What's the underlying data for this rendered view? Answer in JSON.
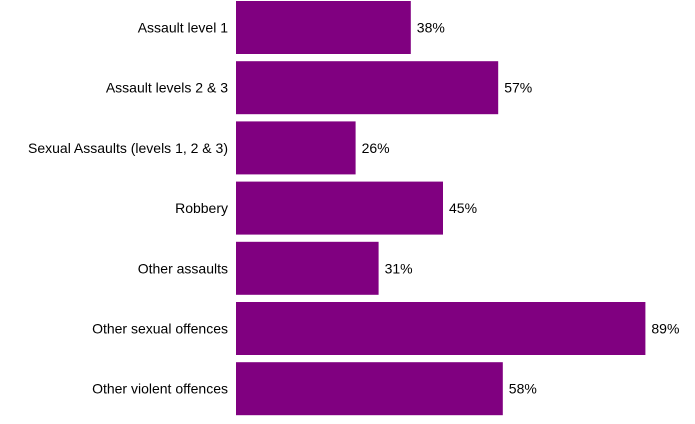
{
  "chart_data": {
    "type": "bar",
    "orientation": "horizontal",
    "categories": [
      "Assault level 1",
      "Assault levels 2 & 3",
      "Sexual Assaults (levels 1, 2 & 3)",
      "Robbery",
      "Other assaults",
      "Other sexual offences",
      "Other violent offences"
    ],
    "values": [
      38,
      57,
      26,
      45,
      31,
      89,
      58
    ],
    "value_labels": [
      "38%",
      "57%",
      "26%",
      "45%",
      "31%",
      "89%",
      "58%"
    ],
    "title": "",
    "xlabel": "",
    "ylabel": "",
    "xlim": [
      0,
      100
    ],
    "grid": false,
    "legend": "none",
    "bar_color": "#800080"
  }
}
